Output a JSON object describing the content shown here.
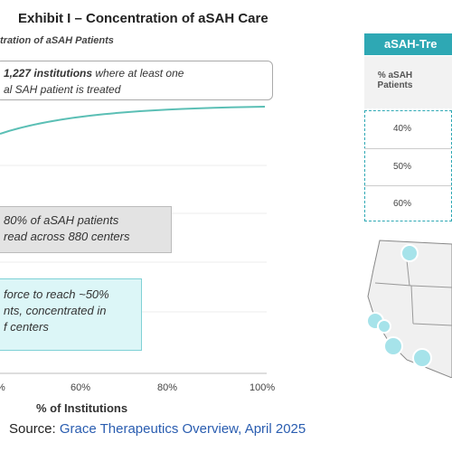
{
  "header": {
    "title": "Exhibit I – Concentration of aSAH Care",
    "subtitle": "tration of aSAH Patients"
  },
  "chart": {
    "callouts": [
      {
        "lines": [
          {
            "bold": "1,227 institutions",
            "rest": " where at least one"
          },
          {
            "bold": "",
            "rest": "al SAH patient is treated"
          }
        ]
      },
      {
        "lines": [
          "80% of aSAH patients",
          "read across 880 centers"
        ]
      },
      {
        "lines": [
          "force to reach ~50%",
          "nts, concentrated in",
          "f centers"
        ]
      }
    ],
    "x_tick_labels": [
      "%",
      "60%",
      "80%",
      "100%"
    ],
    "x_label": "% of Institutions"
  },
  "table": {
    "title": "aSAH-Tre",
    "column_header": "% aSAH Patients",
    "rows": [
      "40%",
      "50%",
      "60%"
    ]
  },
  "footer": {
    "source_label": "Source:",
    "source": "Grace Therapeutics Overview, April 2025"
  }
}
